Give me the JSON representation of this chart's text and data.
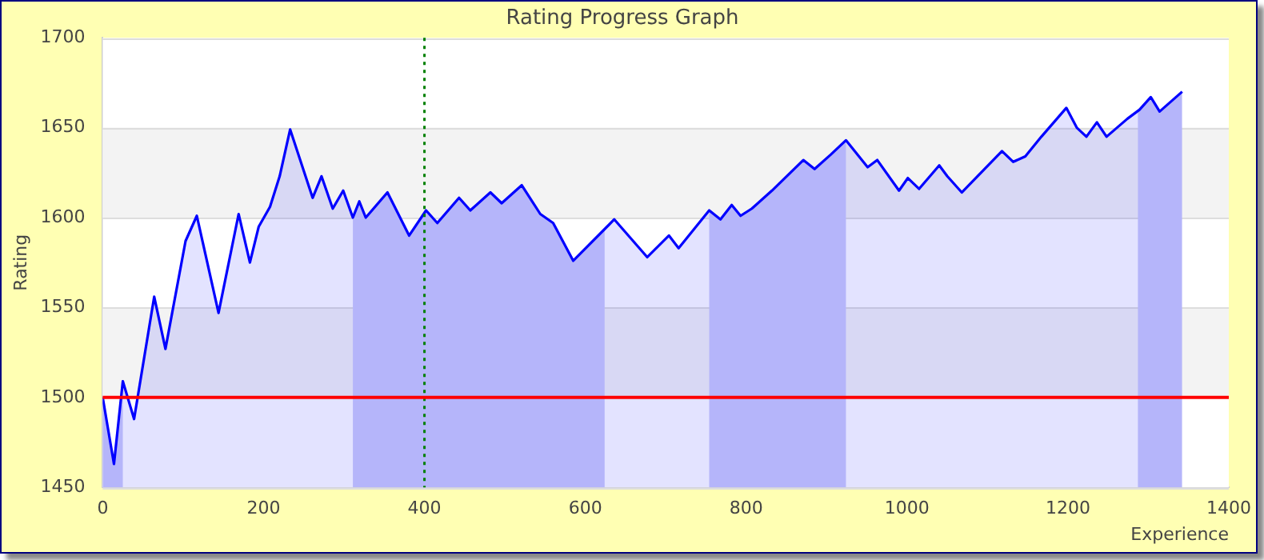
{
  "chart_data": {
    "type": "area",
    "title": "Rating Progress Graph",
    "xlabel": "Experience",
    "ylabel": "Rating",
    "x": [
      0,
      14,
      25,
      39,
      64,
      78,
      103,
      117,
      144,
      169,
      183,
      194,
      208,
      220,
      233,
      261,
      272,
      286,
      299,
      311,
      319,
      327,
      354,
      381,
      402,
      416,
      443,
      457,
      482,
      496,
      521,
      544,
      560,
      585,
      636,
      677,
      704,
      716,
      754,
      768,
      782,
      793,
      807,
      832,
      871,
      885,
      905,
      924,
      951,
      963,
      990,
      1001,
      1015,
      1040,
      1050,
      1068,
      1118,
      1132,
      1147,
      1167,
      1198,
      1211,
      1223,
      1236,
      1248,
      1274,
      1289,
      1303,
      1314,
      1342
    ],
    "series": [
      {
        "color": "#0000ff",
        "values": [
          1500,
          1463,
          1509,
          1488,
          1556,
          1527,
          1587,
          1601,
          1547,
          1602,
          1575,
          1595,
          1606,
          1623,
          1649,
          1611,
          1623,
          1605,
          1615,
          1600,
          1609,
          1600,
          1614,
          1590,
          1604,
          1597,
          1611,
          1604,
          1614,
          1608,
          1618,
          1602,
          1597,
          1576,
          1599,
          1578,
          1590,
          1583,
          1604,
          1599,
          1607,
          1601,
          1605,
          1615,
          1632,
          1627,
          1635,
          1643,
          1628,
          1632,
          1615,
          1622,
          1616,
          1629,
          1623,
          1614,
          1637,
          1631,
          1634,
          1645,
          1661,
          1650,
          1645,
          1653,
          1645,
          1655,
          1660,
          1667,
          1659,
          1670
        ]
      }
    ],
    "xlim": [
      0,
      1400
    ],
    "xticks": [
      0,
      200,
      400,
      600,
      800,
      1000,
      1200,
      1400
    ],
    "ylim": [
      1450,
      1700
    ],
    "yticks": [
      1450,
      1500,
      1550,
      1600,
      1650,
      1700
    ],
    "grid": "y",
    "legend": false,
    "ref_lines": [
      {
        "axis": "x",
        "value": 400,
        "color": "#008000",
        "line_style": "dotted"
      },
      {
        "axis": "y",
        "value": 1500,
        "color": "#ff0000",
        "line_style": "solid"
      }
    ],
    "bands": [
      {
        "axis": "x",
        "from": 0,
        "to": 25,
        "color": "#ccccfa"
      },
      {
        "axis": "x",
        "from": 311,
        "to": 624,
        "color": "#ccccfa"
      },
      {
        "axis": "x",
        "from": 754,
        "to": 924,
        "color": "#ccccfa"
      },
      {
        "axis": "x",
        "from": 1287,
        "to": 1342,
        "color": "#ccccfa"
      }
    ]
  }
}
